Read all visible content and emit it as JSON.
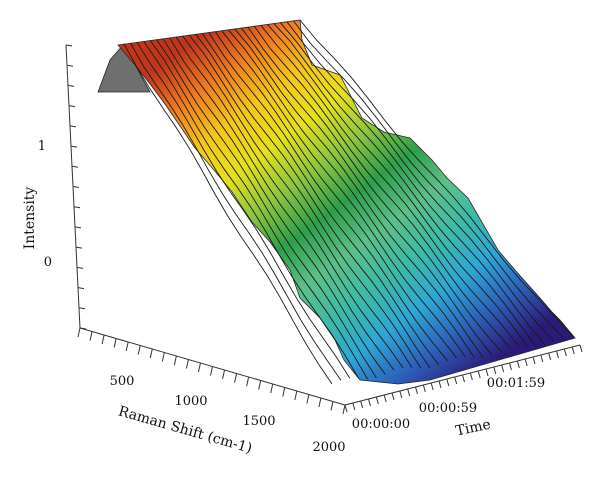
{
  "chart_data": {
    "type": "surface-3d",
    "title": "",
    "xlabel": "Raman Shift (cm-1)",
    "ylabel": "Time",
    "zlabel": "Intensity",
    "x_ticks": [
      "500",
      "1000",
      "1500",
      "2000"
    ],
    "y_ticks": [
      "00:00:00",
      "00:00:59",
      "00:01:59"
    ],
    "z_ticks": [
      "0",
      "1"
    ],
    "xlim": [
      200,
      2000
    ],
    "ylim": [
      "00:00:00",
      "00:02:40"
    ],
    "colormap": [
      "#2b1a78",
      "#2d5fb8",
      "#2fa6d6",
      "#3dbaa6",
      "#5dbf89",
      "#2e9e4a",
      "#8cc63f",
      "#e5e01c",
      "#f4c81a",
      "#ee7d1e",
      "#c0361c"
    ],
    "grid": false,
    "legend": "none"
  }
}
